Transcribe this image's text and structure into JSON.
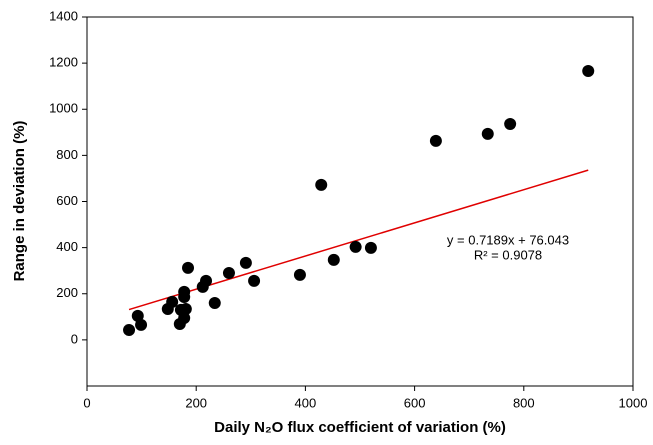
{
  "chart_data": {
    "type": "scatter",
    "x_label": "Daily N₂O flux coefficient of variation (%)",
    "y_label": "Range in deviation (%)",
    "annotations": [
      "y = 0.7189x + 76.043",
      "R² = 0.9078"
    ],
    "x": [
      77,
      93,
      99,
      148,
      156,
      170,
      172,
      178,
      178,
      178,
      181,
      185,
      212,
      218,
      234,
      260,
      291,
      306,
      390,
      429,
      452,
      492,
      520,
      639,
      734,
      775,
      918
    ],
    "values": [
      43,
      104,
      65,
      134,
      165,
      69,
      130,
      186,
      208,
      95,
      134,
      312,
      230,
      256,
      160,
      290,
      334,
      256,
      282,
      672,
      347,
      403,
      399,
      863,
      893,
      936,
      1166
    ],
    "color": "#000000",
    "trendline": {
      "slope": 0.7189,
      "intercept": 76.043,
      "color": "#e00000"
    },
    "xlim": [
      0,
      1000
    ],
    "xticks": [
      0,
      200,
      400,
      600,
      800,
      1000
    ],
    "ylim": [
      -200,
      1400
    ],
    "yticks": [
      0,
      200,
      400,
      600,
      800,
      1000,
      1200,
      1400
    ],
    "grid": false
  }
}
